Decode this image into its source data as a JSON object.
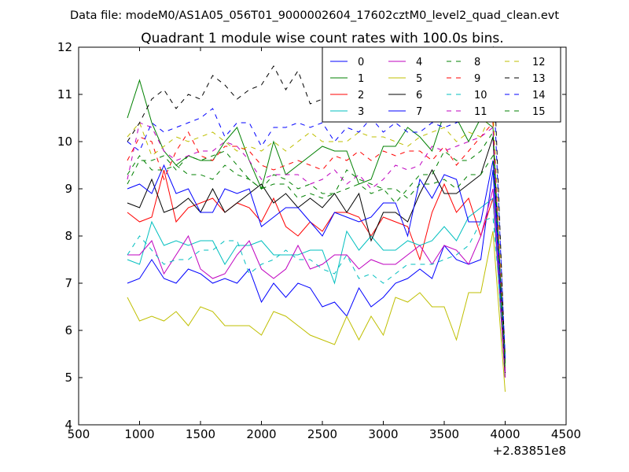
{
  "figure": {
    "suptitle": "Data file: modeM0/AS1A05_056T01_9000002604_17602cztM0_level2_quad_clean.evt"
  },
  "chart_data": {
    "type": "line",
    "title": "Quadrant 1 module wise count rates with 100.0s bins.",
    "xlabel": "",
    "ylabel": "",
    "x_offset_label": "+2.83851e8",
    "xlim": [
      500,
      4500
    ],
    "ylim": [
      4,
      12
    ],
    "xticks": [
      500,
      1000,
      1500,
      2000,
      2500,
      3000,
      3500,
      4000,
      4500
    ],
    "yticks": [
      4,
      5,
      6,
      7,
      8,
      9,
      10,
      11,
      12
    ],
    "grid": false,
    "legend_position": "top-right",
    "x": [
      900,
      1000,
      1100,
      1200,
      1300,
      1400,
      1500,
      1600,
      1700,
      1800,
      1900,
      2000,
      2100,
      2200,
      2300,
      2400,
      2500,
      2600,
      2700,
      2800,
      2900,
      3000,
      3100,
      3200,
      3300,
      3400,
      3500,
      3600,
      3700,
      3800,
      3900,
      4000
    ],
    "series": [
      {
        "name": "0",
        "color": "#0000ff",
        "dash": "solid",
        "values": [
          7.0,
          7.1,
          7.5,
          7.1,
          7.0,
          7.3,
          7.2,
          7.0,
          7.1,
          7.0,
          7.3,
          6.6,
          7.0,
          6.7,
          7.0,
          6.9,
          6.5,
          6.6,
          6.3,
          6.9,
          6.5,
          6.7,
          7.0,
          7.1,
          7.3,
          7.1,
          7.8,
          7.5,
          7.4,
          7.5,
          9.4,
          5.1
        ]
      },
      {
        "name": "1",
        "color": "#008000",
        "dash": "solid",
        "values": [
          10.5,
          11.3,
          10.4,
          9.8,
          9.5,
          9.7,
          9.6,
          9.6,
          10.0,
          10.3,
          9.6,
          9.0,
          10.0,
          9.3,
          9.5,
          9.7,
          9.9,
          9.8,
          9.8,
          9.1,
          9.2,
          9.9,
          9.9,
          10.3,
          10.1,
          9.8,
          10.6,
          10.5,
          10.0,
          10.5,
          10.3,
          5.0
        ]
      },
      {
        "name": "2",
        "color": "#ff0000",
        "dash": "solid",
        "values": [
          8.5,
          8.3,
          8.4,
          9.4,
          8.3,
          8.6,
          8.7,
          8.8,
          8.5,
          8.7,
          8.6,
          8.3,
          8.8,
          8.2,
          8.0,
          8.3,
          8.1,
          8.5,
          8.5,
          8.4,
          8.0,
          8.4,
          8.3,
          8.2,
          7.5,
          8.5,
          9.1,
          8.5,
          8.8,
          8.0,
          8.8,
          5.0
        ]
      },
      {
        "name": "3",
        "color": "#00bfbf",
        "dash": "solid",
        "values": [
          7.5,
          7.4,
          8.3,
          7.8,
          7.9,
          7.8,
          7.9,
          7.9,
          7.4,
          7.8,
          7.8,
          7.9,
          7.6,
          7.6,
          7.6,
          7.7,
          7.7,
          7.0,
          8.1,
          7.7,
          8.0,
          7.7,
          7.7,
          7.9,
          7.8,
          7.9,
          8.2,
          7.9,
          8.4,
          8.6,
          8.8,
          5.0
        ]
      },
      {
        "name": "4",
        "color": "#bf00bf",
        "dash": "solid",
        "values": [
          7.6,
          7.6,
          7.9,
          7.2,
          7.6,
          8.0,
          7.3,
          7.1,
          7.2,
          7.6,
          7.9,
          7.3,
          7.1,
          7.3,
          7.8,
          7.3,
          7.4,
          7.6,
          7.6,
          7.3,
          7.5,
          7.4,
          7.4,
          7.6,
          7.8,
          7.4,
          7.8,
          7.7,
          7.4,
          8.0,
          9.0,
          5.0
        ]
      },
      {
        "name": "5",
        "color": "#bfbf00",
        "dash": "solid",
        "values": [
          6.7,
          6.2,
          6.3,
          6.2,
          6.4,
          6.1,
          6.5,
          6.4,
          6.1,
          6.1,
          6.1,
          5.9,
          6.4,
          6.3,
          6.1,
          5.9,
          5.8,
          5.7,
          6.3,
          5.8,
          6.3,
          5.9,
          6.7,
          6.6,
          6.8,
          6.5,
          6.5,
          5.8,
          6.8,
          6.8,
          8.1,
          4.7
        ]
      },
      {
        "name": "6",
        "color": "#000000",
        "dash": "solid",
        "values": [
          8.7,
          8.6,
          9.2,
          8.5,
          8.6,
          8.8,
          8.5,
          9.0,
          8.5,
          8.7,
          8.9,
          9.1,
          8.7,
          8.9,
          8.6,
          8.8,
          8.6,
          8.9,
          8.5,
          8.9,
          7.9,
          8.5,
          8.5,
          8.3,
          8.9,
          9.4,
          8.9,
          8.9,
          9.1,
          9.3,
          10.1,
          5.1
        ]
      },
      {
        "name": "7",
        "color": "#0000ff",
        "dash": "solid",
        "values": [
          9.0,
          9.1,
          8.9,
          9.5,
          8.9,
          9.0,
          8.5,
          8.5,
          9.0,
          8.9,
          9.0,
          8.2,
          8.4,
          8.6,
          8.6,
          8.3,
          8.0,
          8.5,
          8.4,
          8.3,
          8.4,
          8.7,
          8.7,
          8.0,
          9.2,
          8.8,
          9.3,
          9.2,
          8.3,
          8.3,
          9.6,
          5.5
        ]
      },
      {
        "name": "8",
        "color": "#008000",
        "dash": "dashed",
        "values": [
          9.1,
          9.6,
          9.6,
          9.7,
          9.4,
          9.7,
          9.6,
          9.7,
          9.8,
          9.5,
          9.2,
          9.0,
          9.3,
          9.2,
          9.0,
          9.1,
          8.9,
          8.9,
          9.4,
          9.2,
          9.1,
          9.0,
          8.7,
          9.0,
          9.3,
          9.3,
          9.8,
          9.6,
          9.6,
          9.8,
          10.2,
          5.2
        ]
      },
      {
        "name": "9",
        "color": "#ff0000",
        "dash": "dashed",
        "values": [
          9.6,
          10.1,
          10.0,
          9.2,
          9.8,
          10.2,
          9.7,
          9.6,
          9.9,
          9.9,
          9.8,
          9.5,
          9.4,
          9.5,
          9.6,
          9.5,
          9.4,
          9.7,
          9.6,
          9.8,
          9.6,
          9.8,
          9.7,
          9.8,
          9.8,
          9.6,
          9.9,
          9.5,
          9.8,
          10.1,
          10.4,
          5.2
        ]
      },
      {
        "name": "10",
        "color": "#00bfbf",
        "dash": "dashed",
        "values": [
          7.6,
          8.0,
          7.7,
          7.4,
          7.5,
          7.5,
          7.7,
          7.7,
          7.9,
          7.9,
          7.2,
          7.4,
          7.5,
          7.7,
          7.5,
          7.5,
          7.3,
          7.2,
          7.6,
          7.1,
          7.2,
          7.0,
          7.2,
          7.4,
          7.4,
          7.4,
          7.5,
          7.6,
          7.8,
          8.3,
          8.4,
          5.5
        ]
      },
      {
        "name": "11",
        "color": "#bf00bf",
        "dash": "dashed",
        "values": [
          9.2,
          10.4,
          10.3,
          9.8,
          9.6,
          9.7,
          9.8,
          9.8,
          10.0,
          9.9,
          9.6,
          9.2,
          9.3,
          9.3,
          9.3,
          9.1,
          9.2,
          9.4,
          9.1,
          9.3,
          9.0,
          9.2,
          9.5,
          9.4,
          9.5,
          9.9,
          9.8,
          9.9,
          10.0,
          10.1,
          10.3,
          5.1
        ]
      },
      {
        "name": "12",
        "color": "#bfbf00",
        "dash": "dashed",
        "values": [
          10.1,
          10.4,
          9.7,
          9.9,
          10.1,
          10.0,
          10.1,
          10.2,
          10.0,
          9.8,
          9.9,
          9.8,
          10.0,
          9.8,
          10.0,
          10.2,
          10.0,
          10.0,
          10.0,
          10.2,
          10.1,
          10.1,
          10.0,
          9.9,
          10.1,
          10.2,
          10.3,
          10.0,
          10.2,
          10.1,
          10.7,
          5.5
        ]
      },
      {
        "name": "13",
        "color": "#000000",
        "dash": "dashed",
        "values": [
          10.0,
          10.4,
          10.9,
          11.1,
          10.7,
          11.0,
          10.9,
          11.4,
          11.2,
          10.9,
          11.1,
          11.2,
          11.6,
          11.1,
          11.5,
          10.8,
          10.9,
          11.0,
          10.8,
          11.3,
          11.3,
          11.0,
          11.2,
          11.0,
          11.2,
          11.4,
          11.3,
          11.5,
          11.2,
          11.6,
          12.0,
          5.3
        ]
      },
      {
        "name": "14",
        "color": "#0000ff",
        "dash": "dashed",
        "values": [
          10.0,
          9.8,
          10.4,
          10.2,
          10.3,
          10.4,
          10.5,
          10.7,
          10.1,
          10.4,
          10.4,
          9.9,
          10.3,
          10.3,
          10.4,
          10.3,
          10.4,
          10.0,
          10.3,
          10.2,
          10.5,
          10.2,
          10.4,
          10.2,
          10.2,
          10.4,
          10.3,
          10.4,
          10.5,
          10.5,
          11.5,
          5.4
        ]
      },
      {
        "name": "15",
        "color": "#008000",
        "dash": "dashed",
        "values": [
          9.3,
          9.7,
          9.4,
          9.4,
          9.5,
          9.3,
          9.3,
          9.2,
          9.5,
          9.3,
          9.2,
          9.0,
          9.1,
          9.1,
          8.8,
          8.9,
          8.8,
          8.9,
          9.0,
          9.1,
          8.9,
          9.0,
          9.0,
          8.8,
          9.1,
          9.1,
          9.2,
          9.0,
          9.3,
          9.3,
          9.7,
          5.3
        ]
      }
    ]
  }
}
